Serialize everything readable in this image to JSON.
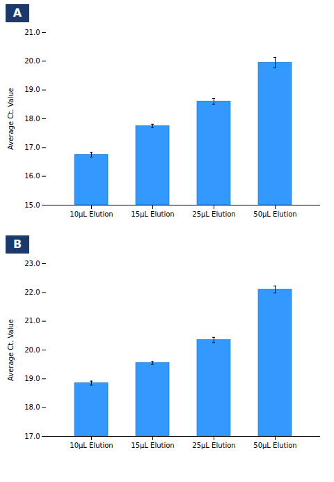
{
  "chart_data": [
    {
      "type": "bar",
      "title": "A",
      "categories": [
        "10μL Elution",
        "15μL Elution",
        "25μL Elution",
        "50μL Elution"
      ],
      "values": [
        16.75,
        17.75,
        18.6,
        19.95
      ],
      "errors": [
        0.08,
        0.06,
        0.1,
        0.18
      ],
      "color": "#3399FF",
      "ylabel": "Average Ct. Value",
      "ylim": [
        15.0,
        21.0
      ],
      "yticks": [
        {
          "value": 15.0,
          "label": "15.0"
        },
        {
          "value": 16.0,
          "label": "16.0"
        },
        {
          "value": 17.0,
          "label": "17.0"
        },
        {
          "value": 18.0,
          "label": "18.0"
        },
        {
          "value": 19.0,
          "label": "19.0"
        },
        {
          "value": 20.0,
          "label": "20.0"
        },
        {
          "value": 21.0,
          "label": "21.0"
        }
      ],
      "grid": false
    },
    {
      "type": "bar",
      "title": "B",
      "categories": [
        "10μL Elution",
        "15μL Elution",
        "25μL Elution",
        "50μL Elution"
      ],
      "values": [
        18.85,
        19.55,
        20.35,
        22.1
      ],
      "errors": [
        0.07,
        0.05,
        0.09,
        0.12
      ],
      "color": "#3399FF",
      "ylabel": "Average Ct. Value",
      "ylim": [
        17.0,
        23.0
      ],
      "yticks": [
        {
          "value": 17.0,
          "label": "17.0"
        },
        {
          "value": 18.0,
          "label": "18.0"
        },
        {
          "value": 19.0,
          "label": "19.0"
        },
        {
          "value": 20.0,
          "label": "20.0"
        },
        {
          "value": 21.0,
          "label": "21.0"
        },
        {
          "value": 22.0,
          "label": "22.0"
        },
        {
          "value": 23.0,
          "label": "23.0"
        }
      ],
      "grid": false
    }
  ]
}
